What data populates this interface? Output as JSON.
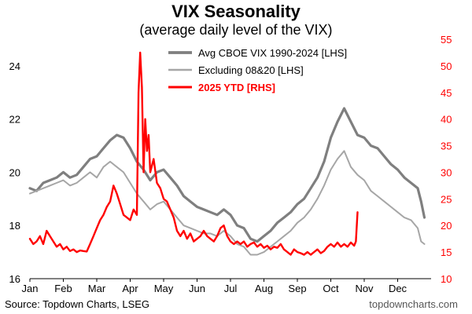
{
  "header": {
    "title": "VIX Seasonality",
    "subtitle": "(average daily level of the VIX)"
  },
  "footer": {
    "source": "Source: Topdown Charts, LSEG",
    "credit": "topdowncharts.com"
  },
  "colors": {
    "avg": "#7f7f7f",
    "excl": "#a6a6a6",
    "ytd": "#ff0000",
    "axis": "#000000"
  },
  "chart_data": {
    "type": "line",
    "title": "VIX Seasonality",
    "subtitle": "(average daily level of the VIX)",
    "x_ticks": [
      "Jan",
      "Feb",
      "Mar",
      "Apr",
      "May",
      "Jun",
      "Jul",
      "Aug",
      "Sep",
      "Oct",
      "Nov",
      "Dec"
    ],
    "y_left": {
      "ylim": [
        16,
        25
      ],
      "ticks": [
        "16",
        "18",
        "20",
        "22",
        "24"
      ]
    },
    "y_right": {
      "ylim": [
        10,
        55
      ],
      "ticks": [
        "10",
        "15",
        "20",
        "25",
        "30",
        "35",
        "40",
        "45",
        "50",
        "55"
      ]
    },
    "grid": false,
    "legend_position": "top-center",
    "series": [
      {
        "name": "Avg CBOE VIX 1990-2024 [LHS]",
        "axis": "left",
        "values": [
          [
            0,
            19.4
          ],
          [
            0.2,
            19.3
          ],
          [
            0.4,
            19.6
          ],
          [
            0.6,
            19.7
          ],
          [
            0.8,
            19.8
          ],
          [
            1.0,
            20.0
          ],
          [
            1.2,
            19.8
          ],
          [
            1.4,
            19.9
          ],
          [
            1.6,
            20.2
          ],
          [
            1.8,
            20.5
          ],
          [
            2.0,
            20.6
          ],
          [
            2.2,
            20.9
          ],
          [
            2.4,
            21.2
          ],
          [
            2.6,
            21.4
          ],
          [
            2.8,
            21.3
          ],
          [
            3.0,
            20.9
          ],
          [
            3.2,
            20.4
          ],
          [
            3.4,
            20.1
          ],
          [
            3.6,
            19.7
          ],
          [
            3.8,
            20.0
          ],
          [
            4.0,
            20.1
          ],
          [
            4.2,
            19.8
          ],
          [
            4.4,
            19.5
          ],
          [
            4.6,
            19.1
          ],
          [
            4.8,
            18.9
          ],
          [
            5.0,
            18.7
          ],
          [
            5.2,
            18.6
          ],
          [
            5.4,
            18.5
          ],
          [
            5.6,
            18.4
          ],
          [
            5.8,
            18.6
          ],
          [
            6.0,
            18.4
          ],
          [
            6.2,
            18.0
          ],
          [
            6.4,
            17.9
          ],
          [
            6.6,
            17.5
          ],
          [
            6.8,
            17.4
          ],
          [
            7.0,
            17.6
          ],
          [
            7.2,
            17.8
          ],
          [
            7.4,
            18.1
          ],
          [
            7.6,
            18.3
          ],
          [
            7.8,
            18.5
          ],
          [
            8.0,
            18.8
          ],
          [
            8.2,
            19.0
          ],
          [
            8.4,
            19.4
          ],
          [
            8.6,
            19.8
          ],
          [
            8.8,
            20.4
          ],
          [
            9.0,
            21.3
          ],
          [
            9.2,
            21.9
          ],
          [
            9.4,
            22.4
          ],
          [
            9.6,
            21.9
          ],
          [
            9.8,
            21.4
          ],
          [
            10.0,
            21.3
          ],
          [
            10.2,
            21.0
          ],
          [
            10.4,
            20.9
          ],
          [
            10.6,
            20.6
          ],
          [
            10.8,
            20.3
          ],
          [
            11.0,
            20.1
          ],
          [
            11.2,
            19.8
          ],
          [
            11.4,
            19.6
          ],
          [
            11.6,
            19.4
          ],
          [
            11.7,
            18.9
          ],
          [
            11.8,
            18.3
          ]
        ]
      },
      {
        "name": "Excluding 08&20 [LHS]",
        "axis": "left",
        "values": [
          [
            0,
            19.2
          ],
          [
            0.2,
            19.3
          ],
          [
            0.4,
            19.4
          ],
          [
            0.6,
            19.5
          ],
          [
            0.8,
            19.6
          ],
          [
            1.0,
            19.7
          ],
          [
            1.2,
            19.5
          ],
          [
            1.4,
            19.6
          ],
          [
            1.6,
            19.8
          ],
          [
            1.8,
            20.0
          ],
          [
            2.0,
            19.8
          ],
          [
            2.2,
            20.2
          ],
          [
            2.4,
            20.4
          ],
          [
            2.6,
            20.2
          ],
          [
            2.8,
            20.0
          ],
          [
            3.0,
            19.6
          ],
          [
            3.2,
            19.2
          ],
          [
            3.4,
            18.9
          ],
          [
            3.6,
            18.6
          ],
          [
            3.8,
            18.8
          ],
          [
            4.0,
            18.9
          ],
          [
            4.2,
            18.6
          ],
          [
            4.4,
            18.3
          ],
          [
            4.6,
            18.0
          ],
          [
            4.8,
            17.9
          ],
          [
            5.0,
            17.8
          ],
          [
            5.2,
            17.7
          ],
          [
            5.4,
            17.7
          ],
          [
            5.6,
            17.6
          ],
          [
            5.8,
            17.8
          ],
          [
            6.0,
            17.6
          ],
          [
            6.2,
            17.3
          ],
          [
            6.4,
            17.2
          ],
          [
            6.6,
            16.9
          ],
          [
            6.8,
            16.9
          ],
          [
            7.0,
            17.0
          ],
          [
            7.2,
            17.2
          ],
          [
            7.4,
            17.4
          ],
          [
            7.6,
            17.6
          ],
          [
            7.8,
            17.8
          ],
          [
            8.0,
            18.1
          ],
          [
            8.2,
            18.3
          ],
          [
            8.4,
            18.6
          ],
          [
            8.6,
            19.0
          ],
          [
            8.8,
            19.5
          ],
          [
            9.0,
            20.1
          ],
          [
            9.2,
            20.5
          ],
          [
            9.4,
            20.8
          ],
          [
            9.6,
            20.2
          ],
          [
            9.8,
            19.9
          ],
          [
            10.0,
            19.7
          ],
          [
            10.2,
            19.3
          ],
          [
            10.4,
            19.1
          ],
          [
            10.6,
            18.9
          ],
          [
            10.8,
            18.7
          ],
          [
            11.0,
            18.5
          ],
          [
            11.2,
            18.3
          ],
          [
            11.4,
            18.2
          ],
          [
            11.6,
            17.9
          ],
          [
            11.7,
            17.4
          ],
          [
            11.8,
            17.3
          ]
        ]
      },
      {
        "name": "2025 YTD [RHS]",
        "axis": "right",
        "values": [
          [
            0,
            17.5
          ],
          [
            0.1,
            16.5
          ],
          [
            0.2,
            17.0
          ],
          [
            0.3,
            18.0
          ],
          [
            0.4,
            16.5
          ],
          [
            0.5,
            19.0
          ],
          [
            0.6,
            18.0
          ],
          [
            0.7,
            17.0
          ],
          [
            0.8,
            16.0
          ],
          [
            0.9,
            16.5
          ],
          [
            1.0,
            15.5
          ],
          [
            1.1,
            16.0
          ],
          [
            1.2,
            15.2
          ],
          [
            1.3,
            15.5
          ],
          [
            1.4,
            15.0
          ],
          [
            1.5,
            15.3
          ],
          [
            1.6,
            15.2
          ],
          [
            1.7,
            15.1
          ],
          [
            1.8,
            16.5
          ],
          [
            1.9,
            18.0
          ],
          [
            2.0,
            19.5
          ],
          [
            2.1,
            21.0
          ],
          [
            2.2,
            22.0
          ],
          [
            2.3,
            23.5
          ],
          [
            2.4,
            24.5
          ],
          [
            2.5,
            27.5
          ],
          [
            2.6,
            26.0
          ],
          [
            2.7,
            24.0
          ],
          [
            2.8,
            22.0
          ],
          [
            2.9,
            21.5
          ],
          [
            3.0,
            21.0
          ],
          [
            3.1,
            23.0
          ],
          [
            3.2,
            22.0
          ],
          [
            3.25,
            45.0
          ],
          [
            3.3,
            52.5
          ],
          [
            3.35,
            46.0
          ],
          [
            3.4,
            30.0
          ],
          [
            3.45,
            40.0
          ],
          [
            3.5,
            34.0
          ],
          [
            3.55,
            37.0
          ],
          [
            3.6,
            30.0
          ],
          [
            3.7,
            32.5
          ],
          [
            3.8,
            28.0
          ],
          [
            3.9,
            27.0
          ],
          [
            4.0,
            25.0
          ],
          [
            4.1,
            24.5
          ],
          [
            4.2,
            23.0
          ],
          [
            4.3,
            21.5
          ],
          [
            4.4,
            19.0
          ],
          [
            4.5,
            18.0
          ],
          [
            4.6,
            19.0
          ],
          [
            4.7,
            17.5
          ],
          [
            4.8,
            18.5
          ],
          [
            4.9,
            17.0
          ],
          [
            5.0,
            17.5
          ],
          [
            5.1,
            18.0
          ],
          [
            5.2,
            19.0
          ],
          [
            5.3,
            18.0
          ],
          [
            5.4,
            17.5
          ],
          [
            5.5,
            17.0
          ],
          [
            5.6,
            18.0
          ],
          [
            5.7,
            19.5
          ],
          [
            5.8,
            20.0
          ],
          [
            5.9,
            18.0
          ],
          [
            6.0,
            17.0
          ],
          [
            6.1,
            16.5
          ],
          [
            6.2,
            17.0
          ],
          [
            6.3,
            16.5
          ],
          [
            6.4,
            17.0
          ],
          [
            6.5,
            16.0
          ],
          [
            6.6,
            16.5
          ],
          [
            6.7,
            16.8
          ],
          [
            6.8,
            16.0
          ],
          [
            6.9,
            16.5
          ],
          [
            7.0,
            15.8
          ],
          [
            7.1,
            16.2
          ],
          [
            7.2,
            15.5
          ],
          [
            7.3,
            16.0
          ],
          [
            7.4,
            15.8
          ],
          [
            7.5,
            16.5
          ],
          [
            7.6,
            15.5
          ],
          [
            7.7,
            15.0
          ],
          [
            7.8,
            14.5
          ],
          [
            7.9,
            15.5
          ],
          [
            8.0,
            15.0
          ],
          [
            8.1,
            14.8
          ],
          [
            8.2,
            14.5
          ],
          [
            8.3,
            15.0
          ],
          [
            8.4,
            14.5
          ],
          [
            8.5,
            15.0
          ],
          [
            8.6,
            15.5
          ],
          [
            8.7,
            14.8
          ],
          [
            8.8,
            15.2
          ],
          [
            8.9,
            16.0
          ],
          [
            9.0,
            16.5
          ],
          [
            9.1,
            16.0
          ],
          [
            9.2,
            16.8
          ],
          [
            9.3,
            16.0
          ],
          [
            9.4,
            16.5
          ],
          [
            9.5,
            16.0
          ],
          [
            9.6,
            16.8
          ],
          [
            9.7,
            16.2
          ],
          [
            9.75,
            17.0
          ],
          [
            9.8,
            22.5
          ]
        ]
      }
    ]
  }
}
